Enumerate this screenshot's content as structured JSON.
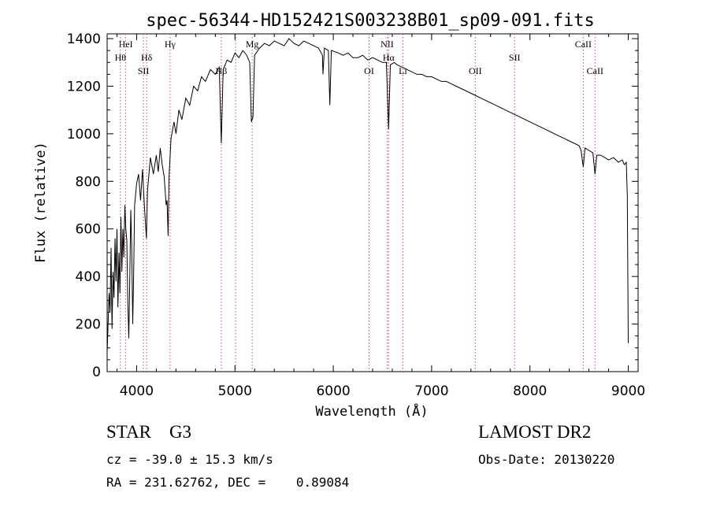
{
  "chart_data": {
    "type": "line",
    "title": "spec-56344-HD152421S003238B01_sp09-091.fits",
    "xlabel": "Wavelength (Å)",
    "ylabel": "Flux (relative)",
    "xlim": [
      3700,
      9100
    ],
    "ylim": [
      0,
      1420
    ],
    "xticks": [
      4000,
      5000,
      6000,
      7000,
      8000,
      9000
    ],
    "yticks": [
      0,
      200,
      400,
      600,
      800,
      1000,
      1200,
      1400
    ],
    "grid": false,
    "series": [
      {
        "values": [
          [
            3700,
            80
          ],
          [
            3720,
            330
          ],
          [
            3730,
            250
          ],
          [
            3740,
            520
          ],
          [
            3750,
            180
          ],
          [
            3760,
            420
          ],
          [
            3770,
            310
          ],
          [
            3780,
            560
          ],
          [
            3790,
            380
          ],
          [
            3800,
            600
          ],
          [
            3810,
            270
          ],
          [
            3820,
            500
          ],
          [
            3830,
            330
          ],
          [
            3840,
            650
          ],
          [
            3850,
            420
          ],
          [
            3860,
            600
          ],
          [
            3870,
            480
          ],
          [
            3880,
            700
          ],
          [
            3890,
            600
          ],
          [
            3900,
            550
          ],
          [
            3910,
            300
          ],
          [
            3920,
            140
          ],
          [
            3930,
            380
          ],
          [
            3940,
            680
          ],
          [
            3950,
            520
          ],
          [
            3960,
            200
          ],
          [
            3970,
            420
          ],
          [
            3980,
            700
          ],
          [
            4000,
            790
          ],
          [
            4020,
            830
          ],
          [
            4040,
            720
          ],
          [
            4060,
            850
          ],
          [
            4080,
            690
          ],
          [
            4100,
            560
          ],
          [
            4110,
            760
          ],
          [
            4140,
            900
          ],
          [
            4170,
            830
          ],
          [
            4200,
            910
          ],
          [
            4220,
            840
          ],
          [
            4240,
            940
          ],
          [
            4260,
            870
          ],
          [
            4280,
            820
          ],
          [
            4300,
            700
          ],
          [
            4310,
            720
          ],
          [
            4320,
            570
          ],
          [
            4330,
            820
          ],
          [
            4350,
            980
          ],
          [
            4380,
            1050
          ],
          [
            4400,
            1000
          ],
          [
            4430,
            1100
          ],
          [
            4460,
            1060
          ],
          [
            4500,
            1150
          ],
          [
            4540,
            1120
          ],
          [
            4580,
            1200
          ],
          [
            4620,
            1180
          ],
          [
            4660,
            1240
          ],
          [
            4700,
            1220
          ],
          [
            4750,
            1270
          ],
          [
            4800,
            1250
          ],
          [
            4840,
            1280
          ],
          [
            4861,
            960
          ],
          [
            4880,
            1270
          ],
          [
            4920,
            1310
          ],
          [
            4960,
            1300
          ],
          [
            5000,
            1340
          ],
          [
            5040,
            1320
          ],
          [
            5080,
            1350
          ],
          [
            5120,
            1330
          ],
          [
            5150,
            1300
          ],
          [
            5167,
            1050
          ],
          [
            5183,
            1070
          ],
          [
            5200,
            1330
          ],
          [
            5250,
            1360
          ],
          [
            5300,
            1380
          ],
          [
            5350,
            1370
          ],
          [
            5400,
            1390
          ],
          [
            5450,
            1380
          ],
          [
            5500,
            1370
          ],
          [
            5550,
            1400
          ],
          [
            5600,
            1380
          ],
          [
            5650,
            1370
          ],
          [
            5700,
            1390
          ],
          [
            5750,
            1380
          ],
          [
            5800,
            1370
          ],
          [
            5850,
            1360
          ],
          [
            5890,
            1330
          ],
          [
            5895,
            1250
          ],
          [
            5910,
            1360
          ],
          [
            5950,
            1350
          ],
          [
            5965,
            1120
          ],
          [
            5980,
            1350
          ],
          [
            6050,
            1340
          ],
          [
            6100,
            1330
          ],
          [
            6150,
            1340
          ],
          [
            6200,
            1320
          ],
          [
            6250,
            1320
          ],
          [
            6300,
            1330
          ],
          [
            6350,
            1310
          ],
          [
            6400,
            1320
          ],
          [
            6450,
            1310
          ],
          [
            6500,
            1300
          ],
          [
            6540,
            1300
          ],
          [
            6563,
            1020
          ],
          [
            6580,
            1290
          ],
          [
            6620,
            1300
          ],
          [
            6650,
            1290
          ],
          [
            6700,
            1280
          ],
          [
            6750,
            1270
          ],
          [
            6800,
            1260
          ],
          [
            6850,
            1250
          ],
          [
            6900,
            1250
          ],
          [
            6950,
            1240
          ],
          [
            7000,
            1240
          ],
          [
            7050,
            1230
          ],
          [
            7100,
            1220
          ],
          [
            7150,
            1220
          ],
          [
            7200,
            1210
          ],
          [
            7250,
            1200
          ],
          [
            7300,
            1190
          ],
          [
            7350,
            1180
          ],
          [
            7400,
            1170
          ],
          [
            7450,
            1160
          ],
          [
            7500,
            1150
          ],
          [
            7550,
            1140
          ],
          [
            7600,
            1130
          ],
          [
            7650,
            1120
          ],
          [
            7700,
            1110
          ],
          [
            7750,
            1100
          ],
          [
            7800,
            1090
          ],
          [
            7850,
            1080
          ],
          [
            7900,
            1070
          ],
          [
            7950,
            1060
          ],
          [
            8000,
            1050
          ],
          [
            8050,
            1040
          ],
          [
            8100,
            1030
          ],
          [
            8150,
            1020
          ],
          [
            8200,
            1010
          ],
          [
            8250,
            1000
          ],
          [
            8300,
            990
          ],
          [
            8350,
            980
          ],
          [
            8400,
            970
          ],
          [
            8450,
            960
          ],
          [
            8500,
            950
          ],
          [
            8520,
            930
          ],
          [
            8542,
            860
          ],
          [
            8560,
            940
          ],
          [
            8600,
            930
          ],
          [
            8640,
            920
          ],
          [
            8662,
            830
          ],
          [
            8680,
            910
          ],
          [
            8720,
            910
          ],
          [
            8760,
            900
          ],
          [
            8800,
            890
          ],
          [
            8850,
            900
          ],
          [
            8900,
            880
          ],
          [
            8940,
            890
          ],
          [
            8960,
            870
          ],
          [
            8980,
            880
          ],
          [
            8990,
            740
          ],
          [
            9000,
            120
          ]
        ]
      }
    ],
    "line_markers": [
      {
        "wavelength": 3889,
        "label": "HeI",
        "row": 0
      },
      {
        "wavelength": 3835,
        "label": "Hθ",
        "row": 1
      },
      {
        "wavelength": 4102,
        "label": "Hδ",
        "row": 1
      },
      {
        "wavelength": 4069,
        "label": "SII",
        "row": 2
      },
      {
        "wavelength": 4340,
        "label": "Hγ",
        "row": 0
      },
      {
        "wavelength": 4861,
        "label": "Hβ",
        "row": 2
      },
      {
        "wavelength": 5007,
        "label": "",
        "row": 0
      },
      {
        "wavelength": 5175,
        "label": "Mg",
        "row": 0
      },
      {
        "wavelength": 6364,
        "label": "OI",
        "row": 2
      },
      {
        "wavelength": 6548,
        "label": "NII",
        "row": 0
      },
      {
        "wavelength": 6563,
        "label": "Hα",
        "row": 1
      },
      {
        "wavelength": 6708,
        "label": "Li",
        "row": 2
      },
      {
        "wavelength": 7444,
        "label": "OII",
        "row": 2
      },
      {
        "wavelength": 7844,
        "label": "SII",
        "row": 1
      },
      {
        "wavelength": 8542,
        "label": "CaII",
        "row": 0
      },
      {
        "wavelength": 8662,
        "label": "CaII",
        "row": 2
      }
    ]
  },
  "footer": {
    "object_class": "STAR    G3",
    "cz_line": "cz = -39.0 ± 15.3 km/s",
    "radec_line": "RA = 231.62762, DEC =    0.89084",
    "survey": "LAMOST DR2",
    "obs_date": "Obs-Date: 20130220"
  }
}
